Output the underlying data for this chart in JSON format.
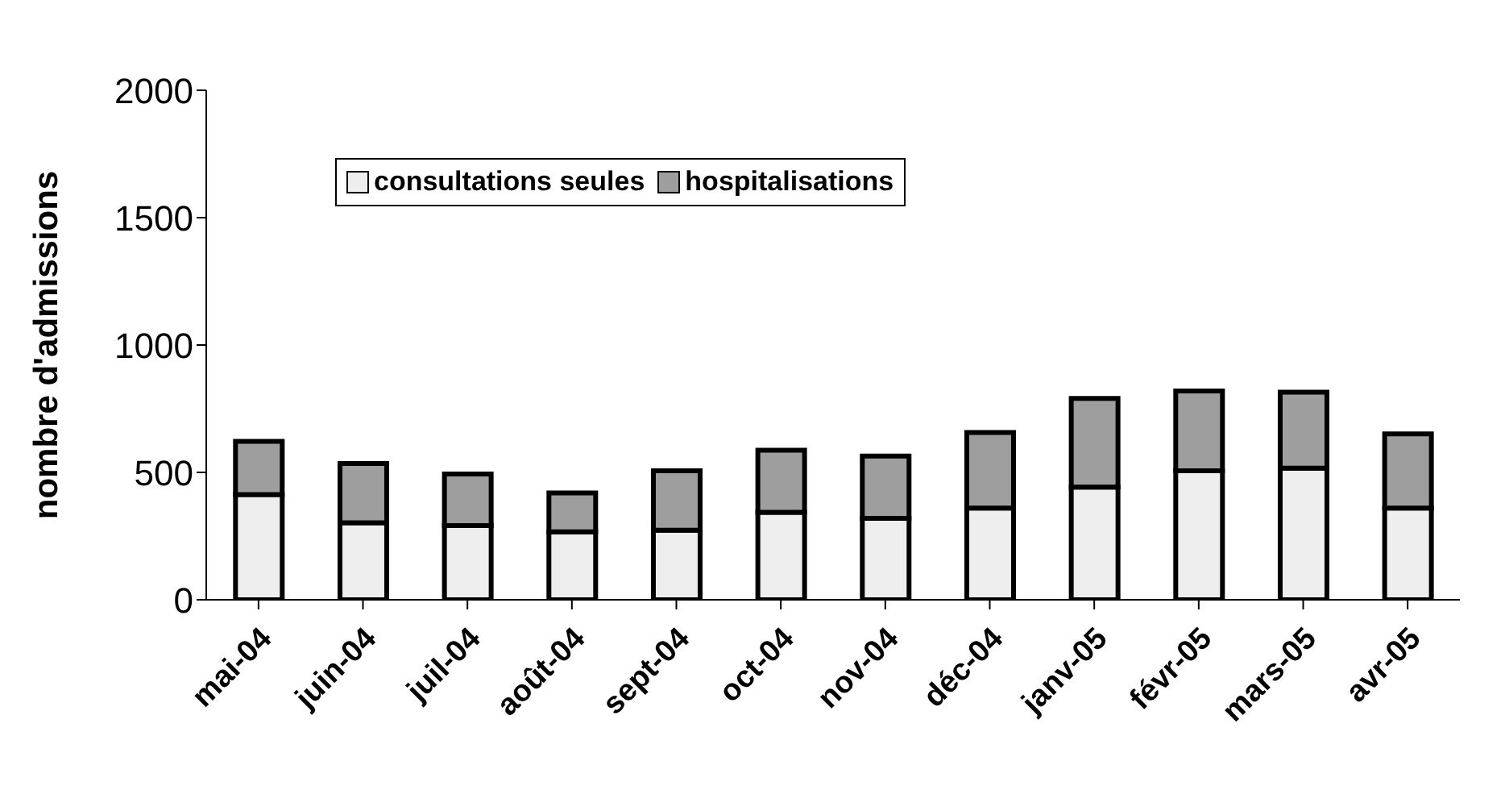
{
  "chart_data": {
    "type": "bar",
    "stacked": true,
    "ylabel": "nombre d'admissions",
    "categories": [
      "mai-04",
      "juin-04",
      "juil-04",
      "août-04",
      "sept-04",
      "oct-04",
      "nov-04",
      "déc-04",
      "janv-05",
      "févr-05",
      "mars-05",
      "avr-05"
    ],
    "series": [
      {
        "name": "consultations seules",
        "color": "#eeeeee",
        "values": [
          413,
          302,
          291,
          267,
          273,
          343,
          320,
          360,
          442,
          506,
          517,
          360
        ]
      },
      {
        "name": "hospitalisations",
        "color": "#9e9e9e",
        "values": [
          209,
          233,
          203,
          152,
          233,
          244,
          244,
          297,
          348,
          314,
          298,
          291
        ]
      }
    ],
    "ylim": [
      0,
      2000
    ],
    "yticks": [
      0,
      500,
      1000,
      1500,
      2000
    ],
    "grid": false,
    "legend": "top left"
  }
}
